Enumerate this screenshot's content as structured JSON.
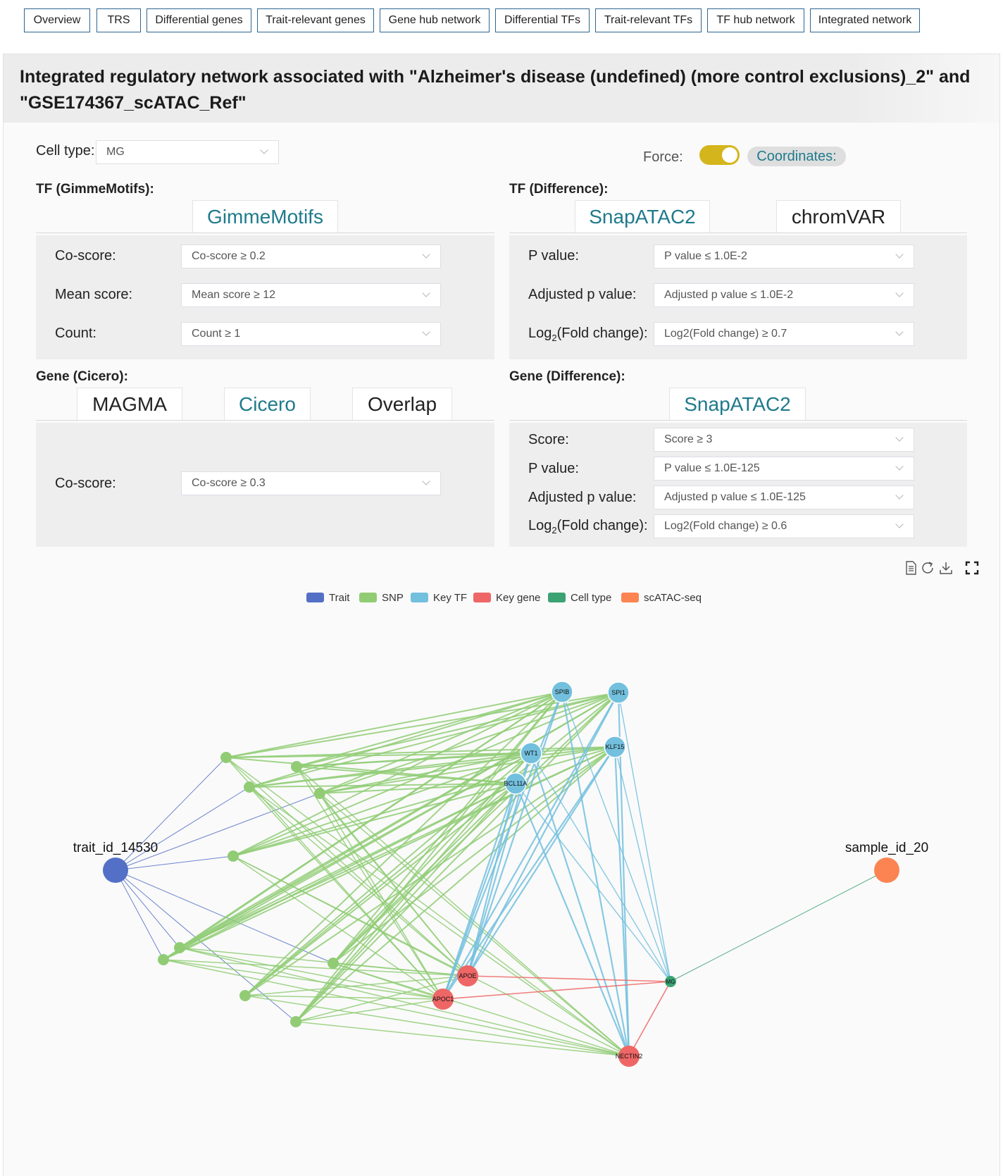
{
  "nav": [
    "Overview",
    "TRS",
    "Differential genes",
    "Trait-relevant genes",
    "Gene hub network",
    "Differential TFs",
    "Trait-relevant TFs",
    "TF hub network",
    "Integrated network"
  ],
  "title": "Integrated regulatory network associated with \"Alzheimer's disease (undefined) (more control exclusions)_2\" and \"GSE174367_scATAC_Ref\"",
  "controls": {
    "cell_type_label": "Cell type:",
    "cell_type_value": "MG",
    "force_label": "Force:",
    "force_on": true,
    "coordinates_label": "Coordinates:"
  },
  "tf_gimme": {
    "heading": "TF (GimmeMotifs):",
    "tab": "GimmeMotifs",
    "co_score_label": "Co-score:",
    "co_score_value": "Co-score ≥ 0.2",
    "mean_score_label": "Mean score:",
    "mean_score_value": "Mean score ≥ 12",
    "count_label": "Count:",
    "count_value": "Count ≥ 1"
  },
  "tf_diff": {
    "heading": "TF (Difference):",
    "tabs": [
      "SnapATAC2",
      "chromVAR"
    ],
    "p_label": "P value:",
    "p_value": "P value ≤ 1.0E-2",
    "adj_label": "Adjusted p value:",
    "adj_value": "Adjusted p value ≤ 1.0E-2",
    "log_prefix": "Log",
    "log_sub": "2",
    "log_suffix": "(Fold change):",
    "log_value": "Log2(Fold change) ≥ 0.7"
  },
  "gene_cicero": {
    "heading": "Gene (Cicero):",
    "tabs": [
      "MAGMA",
      "Cicero",
      "Overlap"
    ],
    "co_score_label": "Co-score:",
    "co_score_value": "Co-score ≥ 0.3"
  },
  "gene_diff": {
    "heading": "Gene (Difference):",
    "tab": "SnapATAC2",
    "score_label": "Score:",
    "score_value": "Score ≥ 3",
    "p_label": "P value:",
    "p_value": "P value ≤ 1.0E-125",
    "adj_label": "Adjusted p value:",
    "adj_value": "Adjusted p value ≤ 1.0E-125",
    "log_prefix": "Log",
    "log_sub": "2",
    "log_suffix": "(Fold change):",
    "log_value": "Log2(Fold change) ≥ 0.6"
  },
  "toolbox": [
    "data-view-icon",
    "restore-icon",
    "save-image-icon",
    "fullscreen-icon"
  ],
  "legend": [
    {
      "name": "Trait",
      "color": "#5470c6"
    },
    {
      "name": "SNP",
      "color": "#91cc75"
    },
    {
      "name": "Key TF",
      "color": "#73c0de"
    },
    {
      "name": "Key gene",
      "color": "#ee6666"
    },
    {
      "name": "Cell type",
      "color": "#3ba272"
    },
    {
      "name": "scATAC-seq",
      "color": "#fc8452"
    }
  ],
  "network": {
    "nodes": [
      {
        "id": "trait",
        "label": "trait_id_14530",
        "cat": 0,
        "big": true
      },
      {
        "id": "sample",
        "label": "sample_id_20",
        "cat": 5,
        "big": true
      },
      {
        "id": "SPIB",
        "label": "SPIB",
        "cat": 2
      },
      {
        "id": "SPI1",
        "label": "SPI1",
        "cat": 2
      },
      {
        "id": "WT1",
        "label": "WT1",
        "cat": 2
      },
      {
        "id": "KLF15",
        "label": "KLF15",
        "cat": 2
      },
      {
        "id": "BCL11A",
        "label": "BCL11A",
        "cat": 2
      },
      {
        "id": "APOE",
        "label": "APOE",
        "cat": 3
      },
      {
        "id": "APOC1",
        "label": "APOC1",
        "cat": 3
      },
      {
        "id": "NECTIN2",
        "label": "NECTIN2",
        "cat": 3
      },
      {
        "id": "MG",
        "label": "MG",
        "cat": 4
      },
      {
        "id": "s1",
        "label": "",
        "cat": 1
      },
      {
        "id": "s2",
        "label": "",
        "cat": 1
      },
      {
        "id": "s3",
        "label": "",
        "cat": 1
      },
      {
        "id": "s4",
        "label": "",
        "cat": 1
      },
      {
        "id": "s5",
        "label": "",
        "cat": 1
      },
      {
        "id": "s6",
        "label": "",
        "cat": 1
      },
      {
        "id": "s7",
        "label": "",
        "cat": 1
      },
      {
        "id": "s8",
        "label": "",
        "cat": 1
      },
      {
        "id": "s9",
        "label": "",
        "cat": 1
      },
      {
        "id": "s10",
        "label": "",
        "cat": 1
      },
      {
        "id": "s11",
        "label": "",
        "cat": 1
      }
    ],
    "snp_to_tf": [
      "s1",
      "s2",
      "s3",
      "s4",
      "s5",
      "s6",
      "s7",
      "s8",
      "s9",
      "s10",
      "s11"
    ],
    "tf_to_gene": true,
    "gene_to_mg": [
      "APOE",
      "APOC1",
      "NECTIN2"
    ]
  }
}
